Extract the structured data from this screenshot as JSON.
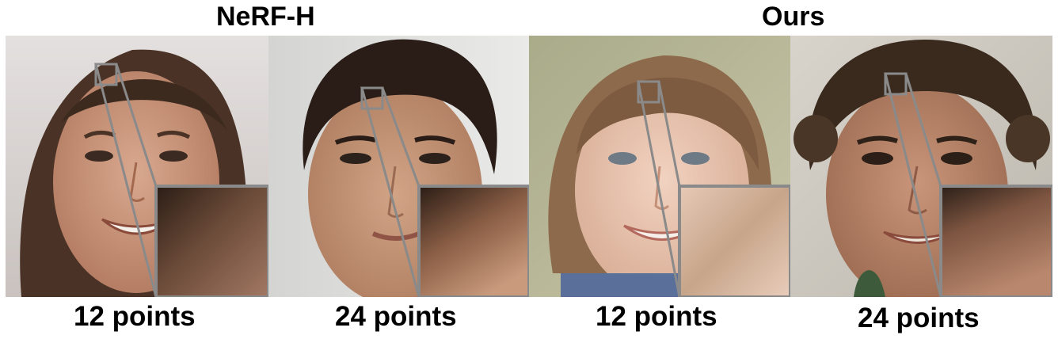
{
  "titles": {
    "left": "NeRF-H",
    "right": "Ours"
  },
  "panels": [
    {
      "caption": "12 points",
      "subject": "smiling woman with long brown hair",
      "inset": "zoomed dark hair texture with pixel noise"
    },
    {
      "caption": "24 points",
      "subject": "boy with short black hair",
      "inset": "zoomed hair to skin transition, blurred"
    },
    {
      "caption": "12 points",
      "subject": "smiling girl with light brown hair",
      "inset": "zoomed smooth hair strands"
    },
    {
      "caption": "24 points",
      "subject": "man with curly dark hair",
      "inset": "zoomed smooth skin and hair edge"
    }
  ],
  "colors": {
    "zoom_frame": "#8a8a8a",
    "background": "#ffffff",
    "text": "#000000"
  }
}
